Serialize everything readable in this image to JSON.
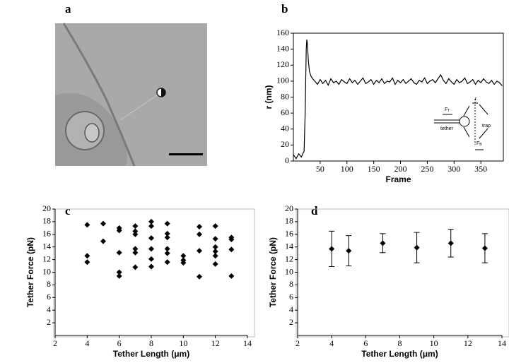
{
  "chart_data": [
    {
      "type": "image",
      "panel": "a"
    },
    {
      "type": "line",
      "panel": "b",
      "xlabel": "Frame",
      "ylabel": "r (nm)",
      "x": [
        0,
        5,
        10,
        15,
        18,
        20,
        22,
        24,
        25,
        26,
        28,
        30,
        33,
        36,
        40,
        45,
        50,
        55,
        60,
        65,
        70,
        75,
        80,
        85,
        90,
        95,
        100,
        105,
        110,
        115,
        120,
        125,
        130,
        135,
        140,
        145,
        150,
        155,
        160,
        165,
        170,
        175,
        180,
        185,
        190,
        195,
        200,
        205,
        210,
        215,
        220,
        225,
        230,
        235,
        240,
        245,
        250,
        255,
        260,
        265,
        270,
        275,
        280,
        285,
        290,
        295,
        300,
        305,
        310,
        315,
        320,
        325,
        330,
        335,
        340,
        345,
        350,
        355,
        360,
        365,
        370,
        375,
        380,
        385,
        390
      ],
      "values": [
        8,
        3,
        9,
        5,
        10,
        12,
        60,
        140,
        152,
        148,
        125,
        112,
        106,
        103,
        100,
        96,
        102,
        97,
        101,
        95,
        103,
        98,
        100,
        96,
        102,
        99,
        97,
        103,
        98,
        101,
        96,
        100,
        104,
        97,
        99,
        102,
        96,
        101,
        98,
        103,
        97,
        100,
        99,
        104,
        96,
        101,
        98,
        102,
        97,
        100,
        103,
        98,
        96,
        101,
        99,
        104,
        97,
        100,
        102,
        98,
        103,
        108,
        101,
        97,
        103,
        99,
        96,
        102,
        98,
        100,
        104,
        97,
        99,
        102,
        96,
        101,
        98,
        103,
        99,
        97,
        101,
        96,
        100,
        98,
        94
      ],
      "color": "#000000",
      "xlim": [
        0,
        392
      ],
      "ylim": [
        0,
        160
      ],
      "xticks": [
        50,
        100,
        150,
        200,
        250,
        300,
        350
      ],
      "yticks": [
        0,
        20,
        40,
        60,
        80,
        100,
        120,
        140,
        160
      ],
      "inset_labels": [
        "F",
        "T",
        "tether",
        "trap",
        "r",
        "F",
        "B"
      ]
    },
    {
      "type": "scatter",
      "panel": "c",
      "xlabel": "Tether Length (μm)",
      "ylabel": "Tether Force (pN)",
      "color": "#000000",
      "x": [
        4,
        4,
        4,
        5,
        5,
        6,
        6,
        6,
        6,
        6,
        7,
        7,
        7,
        7,
        7,
        7,
        8,
        8,
        8,
        8,
        8,
        8,
        9,
        9,
        9,
        9,
        9,
        9,
        10,
        10,
        10,
        11,
        11,
        11,
        11,
        12,
        12,
        12,
        12,
        12,
        12,
        13,
        13,
        13,
        13
      ],
      "values": [
        17.5,
        12.6,
        11.6,
        17.7,
        14.9,
        17.0,
        16.6,
        13.1,
        10.0,
        9.4,
        17.3,
        16.5,
        16.0,
        13.7,
        13.1,
        10.8,
        18.0,
        17.3,
        15.4,
        13.7,
        12.1,
        10.9,
        17.7,
        16.1,
        15.5,
        13.7,
        13.0,
        11.6,
        12.6,
        11.9,
        11.5,
        17.2,
        16.0,
        13.4,
        9.3,
        17.3,
        15.3,
        14.0,
        13.3,
        12.6,
        11.3,
        15.5,
        15.2,
        13.6,
        9.4
      ],
      "xlim": [
        2,
        14
      ],
      "ylim": [
        0,
        20
      ],
      "xticks": [
        2,
        4,
        6,
        8,
        10,
        12,
        14
      ],
      "yticks": [
        2,
        4,
        6,
        8,
        10,
        12,
        14,
        16,
        18,
        20
      ]
    },
    {
      "type": "errorbar",
      "panel": "d",
      "xlabel": "Tether Length (μm)",
      "ylabel": "Tether Force (pN)",
      "color": "#000000",
      "x": [
        4,
        5,
        7,
        9,
        11,
        13
      ],
      "values": [
        13.7,
        13.4,
        14.6,
        13.9,
        14.6,
        13.8
      ],
      "errors": [
        2.8,
        2.4,
        1.5,
        2.4,
        2.2,
        2.3
      ],
      "xlim": [
        2,
        14
      ],
      "ylim": [
        0,
        20
      ],
      "xticks": [
        2,
        4,
        6,
        8,
        10,
        12,
        14
      ],
      "yticks": [
        2,
        4,
        6,
        8,
        10,
        12,
        14,
        16,
        18,
        20
      ]
    }
  ]
}
